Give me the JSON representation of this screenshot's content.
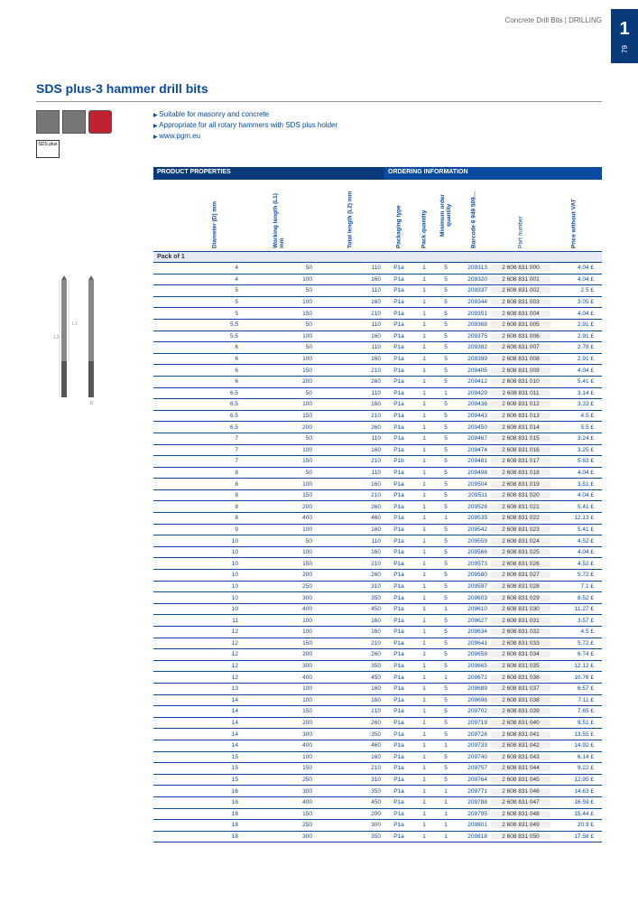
{
  "page": {
    "section_number": "1",
    "page_number": "79",
    "breadcrumb": "Concrete Drill Bits | DRILLING"
  },
  "title": "SDS plus-3 hammer drill bits",
  "bullets": [
    "Suitable for masonry and concrete",
    "Appropriate for all rotary hammers with SDS plus holder",
    "www.pgm.eu"
  ],
  "sds_badge": "SDS plus",
  "table": {
    "header_props": "PRODUCT PROPERTIES",
    "header_order": "ORDERING INFORMATION",
    "columns": [
      "Diameter (D) mm",
      "Working length (L1) mm",
      "Total length (L2) mm",
      "Packaging type",
      "Pack quantity",
      "Minimum order quantity",
      "Barcode 6 949 509…",
      "Part number",
      "Price without VAT"
    ],
    "pack_label": "Pack of 1",
    "rows": [
      [
        "4",
        "50",
        "110",
        "P1a",
        "1",
        "5",
        "209313",
        "2 608 831 000",
        "4.04 £"
      ],
      [
        "4",
        "100",
        "160",
        "P1a",
        "1",
        "5",
        "209320",
        "2 608 831 001",
        "4.04 £"
      ],
      [
        "5",
        "50",
        "110",
        "P1a",
        "1",
        "5",
        "209337",
        "2 608 831 002",
        "2.5 £"
      ],
      [
        "5",
        "100",
        "160",
        "P1a",
        "1",
        "5",
        "209344",
        "2 608 831 003",
        "3.05 £"
      ],
      [
        "5",
        "150",
        "210",
        "P1a",
        "1",
        "5",
        "209351",
        "2 608 831 004",
        "4.04 £"
      ],
      [
        "5.5",
        "50",
        "110",
        "P1a",
        "1",
        "5",
        "209368",
        "2 608 831 005",
        "2.91 £"
      ],
      [
        "5.5",
        "100",
        "160",
        "P1a",
        "1",
        "5",
        "209375",
        "2 608 831 006",
        "2.91 £"
      ],
      [
        "6",
        "50",
        "110",
        "P1a",
        "1",
        "5",
        "209382",
        "2 608 831 007",
        "2.78 £"
      ],
      [
        "6",
        "100",
        "160",
        "P1a",
        "1",
        "5",
        "209399",
        "2 608 831 008",
        "2.91 £"
      ],
      [
        "6",
        "150",
        "210",
        "P1a",
        "1",
        "5",
        "209405",
        "2 608 831 009",
        "4.04 £"
      ],
      [
        "6",
        "200",
        "260",
        "P1a",
        "1",
        "5",
        "209412",
        "2 608 831 010",
        "5.41 £"
      ],
      [
        "6.5",
        "50",
        "110",
        "P1a",
        "1",
        "1",
        "209429",
        "2 608 831 011",
        "3.14 £"
      ],
      [
        "6.5",
        "100",
        "160",
        "P1a",
        "1",
        "5",
        "209436",
        "2 608 831 012",
        "3.33 £"
      ],
      [
        "6.5",
        "150",
        "210",
        "P1a",
        "1",
        "5",
        "209443",
        "2 608 831 013",
        "4.5 £"
      ],
      [
        "6.5",
        "200",
        "260",
        "P1a",
        "1",
        "5",
        "209450",
        "2 608 831 014",
        "5.5 £"
      ],
      [
        "7",
        "50",
        "110",
        "P1a",
        "1",
        "5",
        "209467",
        "2 608 831 015",
        "3.24 £"
      ],
      [
        "7",
        "100",
        "160",
        "P1a",
        "1",
        "5",
        "209474",
        "2 608 831 016",
        "3.25 £"
      ],
      [
        "7",
        "150",
        "210",
        "P1b",
        "1",
        "5",
        "209481",
        "2 608 831 017",
        "5.63 £"
      ],
      [
        "8",
        "50",
        "110",
        "P1a",
        "1",
        "5",
        "209498",
        "2 608 831 018",
        "4.04 £"
      ],
      [
        "8",
        "100",
        "160",
        "P1a",
        "1",
        "5",
        "209504",
        "2 608 831 019",
        "3.51 £"
      ],
      [
        "8",
        "150",
        "210",
        "P1a",
        "1",
        "5",
        "209511",
        "2 608 831 020",
        "4.04 £"
      ],
      [
        "8",
        "200",
        "260",
        "P1a",
        "1",
        "5",
        "209528",
        "2 608 831 021",
        "5.41 £"
      ],
      [
        "8",
        "400",
        "460",
        "P1a",
        "1",
        "1",
        "209535",
        "2 608 831 022",
        "12.13 £"
      ],
      [
        "9",
        "100",
        "160",
        "P1a",
        "1",
        "5",
        "209542",
        "2 608 831 023",
        "5.41 £"
      ],
      [
        "10",
        "50",
        "110",
        "P1a",
        "1",
        "5",
        "209559",
        "2 608 831 024",
        "4.52 £"
      ],
      [
        "10",
        "100",
        "160",
        "P1a",
        "1",
        "5",
        "209566",
        "2 608 831 025",
        "4.04 £"
      ],
      [
        "10",
        "150",
        "210",
        "P1a",
        "1",
        "5",
        "209573",
        "2 608 831 026",
        "4.52 £"
      ],
      [
        "10",
        "200",
        "260",
        "P1a",
        "1",
        "5",
        "209580",
        "2 608 831 027",
        "5.72 £"
      ],
      [
        "10",
        "250",
        "310",
        "P1a",
        "1",
        "5",
        "209597",
        "2 608 831 028",
        "7.1 £"
      ],
      [
        "10",
        "300",
        "350",
        "P1a",
        "1",
        "5",
        "209603",
        "2 608 831 029",
        "8.52 £"
      ],
      [
        "10",
        "400",
        "450",
        "P1a",
        "1",
        "1",
        "209610",
        "2 608 831 030",
        "11.27 £"
      ],
      [
        "11",
        "100",
        "160",
        "P1a",
        "1",
        "5",
        "209627",
        "2 608 831 031",
        "3.57 £"
      ],
      [
        "12",
        "100",
        "160",
        "P1a",
        "1",
        "5",
        "209634",
        "2 608 831 032",
        "4.5 £"
      ],
      [
        "12",
        "150",
        "210",
        "P1a",
        "1",
        "5",
        "209641",
        "2 608 831 033",
        "5.72 £"
      ],
      [
        "12",
        "200",
        "260",
        "P1a",
        "1",
        "5",
        "209658",
        "2 608 831 034",
        "6.74 £"
      ],
      [
        "12",
        "300",
        "350",
        "P1a",
        "1",
        "5",
        "209665",
        "2 608 831 035",
        "12.12 £"
      ],
      [
        "12",
        "400",
        "450",
        "P1a",
        "1",
        "1",
        "209672",
        "2 608 831 036",
        "10.76 £"
      ],
      [
        "13",
        "100",
        "160",
        "P1a",
        "1",
        "5",
        "209689",
        "2 608 831 037",
        "6.57 £"
      ],
      [
        "14",
        "100",
        "160",
        "P1a",
        "1",
        "5",
        "209696",
        "2 608 831 038",
        "7.11 £"
      ],
      [
        "14",
        "150",
        "210",
        "P1a",
        "1",
        "5",
        "209702",
        "2 608 831 039",
        "7.65 £"
      ],
      [
        "14",
        "200",
        "260",
        "P1a",
        "1",
        "5",
        "209719",
        "2 608 831 040",
        "9.51 £"
      ],
      [
        "14",
        "300",
        "350",
        "P1a",
        "1",
        "5",
        "209726",
        "2 608 831 041",
        "13.55 £"
      ],
      [
        "14",
        "400",
        "460",
        "P1a",
        "1",
        "1",
        "209733",
        "2 608 831 042",
        "14.92 £"
      ],
      [
        "15",
        "100",
        "160",
        "P1a",
        "1",
        "5",
        "209740",
        "2 608 831 043",
        "6.14 £"
      ],
      [
        "15",
        "150",
        "210",
        "P1a",
        "1",
        "5",
        "209757",
        "2 608 831 044",
        "9.22 £"
      ],
      [
        "15",
        "250",
        "310",
        "P1a",
        "1",
        "5",
        "209764",
        "2 608 831 045",
        "12.95 £"
      ],
      [
        "16",
        "300",
        "350",
        "P1a",
        "1",
        "1",
        "209771",
        "2 608 831 046",
        "14.63 £"
      ],
      [
        "16",
        "400",
        "450",
        "P1a",
        "1",
        "1",
        "209788",
        "2 608 831 047",
        "16.59 £"
      ],
      [
        "18",
        "150",
        "200",
        "P1a",
        "1",
        "1",
        "209795",
        "2 608 831 048",
        "15.44 £"
      ],
      [
        "18",
        "250",
        "300",
        "P1a",
        "1",
        "1",
        "209801",
        "2 608 831 049",
        "20.9 £"
      ],
      [
        "18",
        "300",
        "350",
        "P1a",
        "1",
        "1",
        "209818",
        "2 608 831 050",
        "17.58 £"
      ]
    ]
  }
}
